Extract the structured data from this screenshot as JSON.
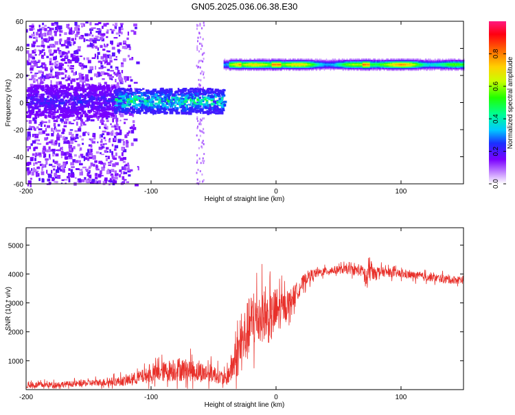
{
  "title": "GN05.2025.036.06.38.E30",
  "chart_data": [
    {
      "type": "heatmap",
      "xlabel": "Height of straight line (km)",
      "ylabel": "Frequency (Hz)",
      "xlim": [
        -200,
        150
      ],
      "ylim": [
        -60,
        60
      ],
      "xticks": [
        "-200",
        "-100",
        "0",
        "100"
      ],
      "yticks": [
        "60",
        "40",
        "20",
        "0",
        "-20",
        "-40",
        "-60"
      ],
      "colorbar_label": "Normalized spectral amplitude",
      "colorbar_ticks": [
        "0.0",
        "0.2",
        "0.4",
        "0.6",
        "0.8"
      ],
      "colorbar_range": [
        0,
        1
      ],
      "features": [
        {
          "x_range": [
            -200,
            -130
          ],
          "y_range": [
            -60,
            60
          ],
          "amplitude": 0.12
        },
        {
          "x_range": [
            -130,
            -42
          ],
          "y_center": 2,
          "y_halfwidth": 8,
          "amplitude": 0.35
        },
        {
          "x_range": [
            -42,
            150
          ],
          "y_center": 28,
          "y_halfwidth": 4,
          "amplitude": 0.6
        }
      ]
    },
    {
      "type": "line",
      "xlabel": "Height of straight line (km)",
      "ylabel": "SNR (10 * v/v)",
      "xlim": [
        -200,
        150
      ],
      "ylim": [
        0,
        5600
      ],
      "xticks": [
        "-200",
        "-100",
        "0",
        "100"
      ],
      "yticks": [
        "1000",
        "2000",
        "3000",
        "4000",
        "5000"
      ],
      "color": "#e8302a",
      "series": [
        {
          "x": [
            -200,
            -180,
            -160,
            -140,
            -120,
            -110,
            -100,
            -90,
            -80,
            -70,
            -60,
            -50,
            -45,
            -40,
            -35,
            -30,
            -25,
            -20,
            -15,
            -10,
            -5,
            0,
            5,
            10,
            15,
            20,
            25,
            30,
            35,
            40,
            50,
            60,
            70,
            72,
            75,
            78,
            80,
            90,
            100,
            110,
            120,
            130,
            140,
            150
          ],
          "values": [
            150,
            170,
            200,
            250,
            300,
            420,
            520,
            620,
            700,
            680,
            600,
            550,
            450,
            350,
            800,
            1300,
            1800,
            2300,
            2500,
            2600,
            2400,
            2700,
            2800,
            3000,
            3300,
            3600,
            3900,
            4000,
            4050,
            4100,
            4150,
            4150,
            4100,
            3700,
            4200,
            4000,
            4100,
            4050,
            4000,
            3950,
            3900,
            3850,
            3800,
            3800
          ],
          "noise": [
            150,
            150,
            150,
            180,
            250,
            330,
            400,
            500,
            600,
            550,
            500,
            450,
            350,
            300,
            800,
            1200,
            1500,
            1500,
            1400,
            1300,
            1200,
            1300,
            800,
            600,
            500,
            400,
            300,
            250,
            200,
            200,
            200,
            220,
            300,
            900,
            700,
            300,
            250,
            220,
            200,
            200,
            200,
            200,
            200,
            200
          ]
        }
      ]
    }
  ]
}
